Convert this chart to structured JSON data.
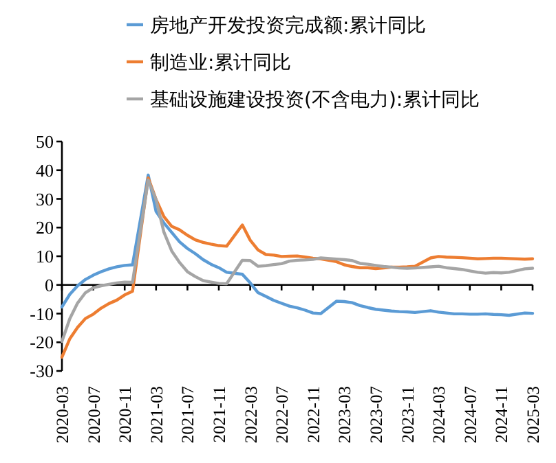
{
  "chart_data": {
    "type": "line",
    "legend": "top",
    "marker": "none",
    "line_style": "solid",
    "x": [
      "2020-03",
      "2020-04",
      "2020-05",
      "2020-06",
      "2020-07",
      "2020-08",
      "2020-09",
      "2020-10",
      "2020-11",
      "2020-12",
      "2021-02",
      "2021-03",
      "2021-04",
      "2021-05",
      "2021-06",
      "2021-07",
      "2021-08",
      "2021-09",
      "2021-10",
      "2021-11",
      "2021-12",
      "2022-02",
      "2022-03",
      "2022-04",
      "2022-05",
      "2022-06",
      "2022-07",
      "2022-08",
      "2022-09",
      "2022-10",
      "2022-11",
      "2022-12",
      "2023-02",
      "2023-03",
      "2023-04",
      "2023-05",
      "2023-06",
      "2023-07",
      "2023-08",
      "2023-09",
      "2023-10",
      "2023-11",
      "2023-12",
      "2024-02",
      "2024-03",
      "2024-04",
      "2024-05",
      "2024-06",
      "2024-07",
      "2024-08",
      "2024-09",
      "2024-10",
      "2024-11",
      "2024-12",
      "2025-02",
      "2025-03"
    ],
    "xlim": [
      "2020-03",
      "2025-03"
    ],
    "xticks": [
      "2020-03",
      "2020-07",
      "2020-11",
      "2021-03",
      "2021-07",
      "2021-11",
      "2022-03",
      "2022-07",
      "2022-11",
      "2023-03",
      "2023-07",
      "2023-11",
      "2024-03",
      "2024-07",
      "2024-11",
      "2025-03"
    ],
    "ylim": [
      -30,
      50
    ],
    "yticks": [
      -30,
      -20,
      -10,
      0,
      10,
      20,
      30,
      40,
      50
    ],
    "series": [
      {
        "name": "房地产开发投资完成额:累计同比",
        "color": "#5b9bd5",
        "values": [
          -7.7,
          -3.3,
          -0.3,
          1.9,
          3.4,
          4.6,
          5.6,
          6.3,
          6.8,
          7.0,
          38.3,
          25.6,
          21.6,
          18.3,
          15.0,
          12.7,
          10.9,
          8.8,
          7.2,
          6.0,
          4.4,
          3.7,
          0.7,
          -2.7,
          -4.0,
          -5.4,
          -6.4,
          -7.4,
          -8.0,
          -8.8,
          -9.8,
          -10.0,
          -5.7,
          -5.8,
          -6.2,
          -7.2,
          -7.9,
          -8.5,
          -8.8,
          -9.1,
          -9.3,
          -9.4,
          -9.6,
          -9.0,
          -9.5,
          -9.8,
          -10.1,
          -10.1,
          -10.2,
          -10.2,
          -10.1,
          -10.3,
          -10.4,
          -10.6,
          -9.8,
          -9.9
        ]
      },
      {
        "name": "制造业:累计同比",
        "color": "#ed7d31",
        "values": [
          -25.2,
          -18.8,
          -14.8,
          -11.7,
          -10.2,
          -8.1,
          -6.5,
          -5.3,
          -3.5,
          -2.2,
          37.3,
          29.8,
          23.8,
          20.4,
          19.2,
          17.3,
          15.7,
          14.8,
          14.2,
          13.7,
          13.5,
          20.9,
          15.6,
          12.2,
          10.6,
          10.4,
          9.9,
          10.0,
          10.1,
          9.7,
          9.3,
          9.1,
          8.1,
          7.0,
          6.4,
          6.0,
          6.0,
          5.7,
          5.9,
          6.2,
          6.2,
          6.3,
          6.5,
          9.4,
          9.9,
          9.7,
          9.6,
          9.5,
          9.3,
          9.1,
          9.2,
          9.3,
          9.3,
          9.2,
          9.0,
          9.1
        ]
      },
      {
        "name": "基础设施建设投资(不含电力):累计同比",
        "color": "#a5a5a5",
        "values": [
          -19.7,
          -11.8,
          -6.3,
          -2.7,
          -1.0,
          -0.3,
          0.2,
          0.7,
          1.0,
          0.9,
          36.6,
          29.7,
          18.4,
          11.8,
          7.8,
          4.6,
          2.9,
          1.5,
          1.0,
          0.5,
          0.4,
          8.6,
          8.5,
          6.5,
          6.7,
          7.1,
          7.4,
          8.3,
          8.6,
          8.7,
          8.9,
          9.4,
          9.0,
          8.8,
          8.5,
          7.5,
          7.2,
          6.8,
          6.4,
          6.2,
          5.9,
          5.8,
          5.9,
          6.3,
          6.5,
          6.0,
          5.7,
          5.4,
          4.9,
          4.4,
          4.1,
          4.3,
          4.2,
          4.4,
          5.6,
          5.8
        ]
      }
    ]
  }
}
